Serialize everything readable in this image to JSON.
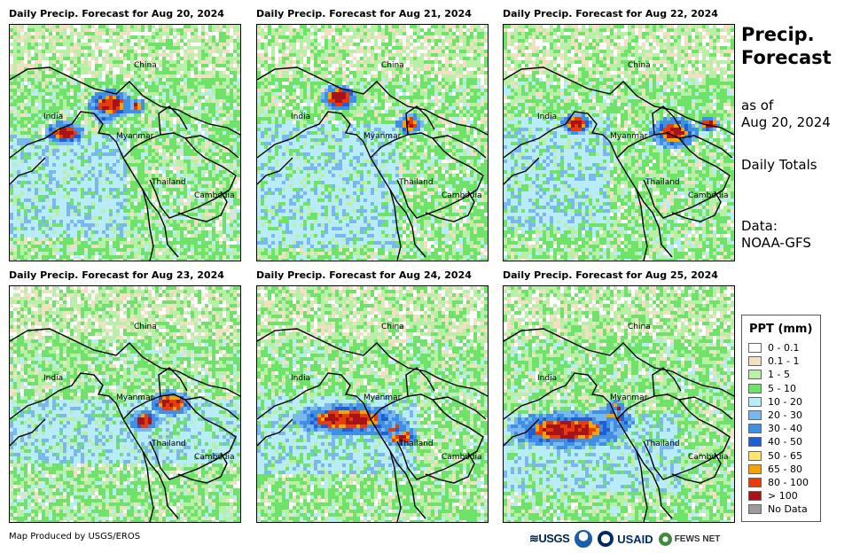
{
  "panels": [
    {
      "title": "Daily Precip. Forecast for Aug 20, 2024"
    },
    {
      "title": "Daily Precip. Forecast for Aug 21, 2024"
    },
    {
      "title": "Daily Precip. Forecast for Aug 22, 2024"
    },
    {
      "title": "Daily Precip. Forecast for Aug 23, 2024"
    },
    {
      "title": "Daily Precip. Forecast for Aug 24, 2024"
    },
    {
      "title": "Daily Precip. Forecast for Aug 25, 2024"
    }
  ],
  "country_labels": {
    "china": "China",
    "india": "India",
    "myanmar": "Myanmar",
    "thailand": "Thailand",
    "cambodia": "Cambodia"
  },
  "side": {
    "title_line1": "Precip.",
    "title_line2": "Forecast",
    "as_of_line1": "as of",
    "as_of_line2": "Aug 20, 2024",
    "totals": "Daily Totals",
    "data_line1": "Data:",
    "data_line2": "NOAA-GFS"
  },
  "legend": {
    "title": "PPT (mm)",
    "items": [
      {
        "label": "0 - 0.1",
        "color": "#ffffff"
      },
      {
        "label": "0.1 - 1",
        "color": "#f3dfc1"
      },
      {
        "label": "1 - 5",
        "color": "#b9f0a8"
      },
      {
        "label": "5 - 10",
        "color": "#6fe26a"
      },
      {
        "label": "10 - 20",
        "color": "#b7ecf8"
      },
      {
        "label": "20 - 30",
        "color": "#79b8ee"
      },
      {
        "label": "30 - 40",
        "color": "#3f8fe5"
      },
      {
        "label": "40 - 50",
        "color": "#1f5fd6"
      },
      {
        "label": "50 - 65",
        "color": "#fde46c"
      },
      {
        "label": "65 - 80",
        "color": "#f7a400"
      },
      {
        "label": "80 - 100",
        "color": "#e83d0b"
      },
      {
        "label": "> 100",
        "color": "#a4141a"
      },
      {
        "label": "No Data",
        "color": "#9b9b9b"
      }
    ]
  },
  "footer": {
    "credit": "Map Produced by USGS/EROS",
    "logo_usgs": "≋USGS",
    "logo_usaid": "USAID",
    "logo_fews": "FEWS NET"
  }
}
